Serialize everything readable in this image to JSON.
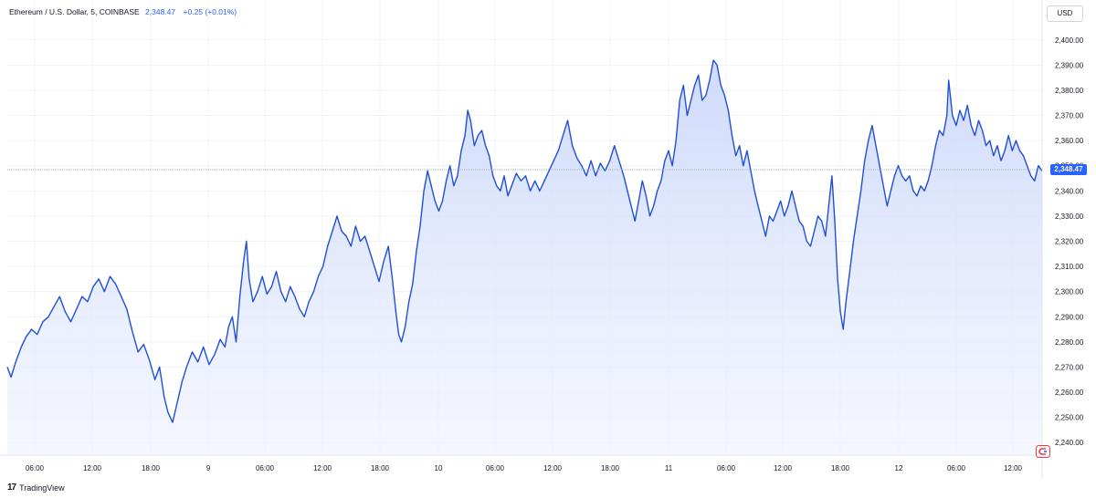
{
  "header": {
    "symbol": "Ethereum / U.S. Dollar, 5, COINBASE",
    "last": "2,348.47",
    "change": "+0.25 (+0.01%)"
  },
  "currency_button": "USD",
  "last_price_label": "2,348.47",
  "footer": {
    "logo_glyph": "17",
    "brand": "TradingView"
  },
  "colors": {
    "line": "#1f4fd6",
    "fill_top": "#c9d6fb",
    "fill_bottom": "#eef2fe",
    "grid": "#f2f3f6",
    "axis_text": "#131722",
    "price_tag": "#2962ff"
  },
  "chart_data": {
    "type": "area",
    "title": "Ethereum / U.S. Dollar, 5, COINBASE",
    "xlabel": "",
    "ylabel": "",
    "ylim": [
      2235,
      2405
    ],
    "y_ticks": [
      2240,
      2250,
      2260,
      2270,
      2280,
      2290,
      2300,
      2310,
      2320,
      2330,
      2340,
      2350,
      2360,
      2370,
      2380,
      2390,
      2400
    ],
    "y_tick_labels": [
      "2,240.00",
      "2,250.00",
      "2,260.00",
      "2,270.00",
      "2,280.00",
      "2,290.00",
      "2,300.00",
      "2,310.00",
      "2,320.00",
      "2,330.00",
      "2,340.00",
      "2,350.00",
      "2,360.00",
      "2,370.00",
      "2,380.00",
      "2,390.00",
      "2,400.00"
    ],
    "x_range_hours": [
      0,
      88
    ],
    "x_ticks": [
      {
        "h": 6,
        "label": "06:00"
      },
      {
        "h": 12,
        "label": "12:00"
      },
      {
        "h": 18,
        "label": "18:00"
      },
      {
        "h": 24,
        "label": "9"
      },
      {
        "h": 30,
        "label": "06:00"
      },
      {
        "h": 36,
        "label": "12:00"
      },
      {
        "h": 42,
        "label": "18:00"
      },
      {
        "h": 48,
        "label": "10"
      },
      {
        "h": 54,
        "label": "06:00"
      },
      {
        "h": 60,
        "label": "12:00"
      },
      {
        "h": 66,
        "label": "18:00"
      },
      {
        "h": 72,
        "label": "11"
      },
      {
        "h": 78,
        "label": "06:00"
      },
      {
        "h": 84,
        "label": "12:00"
      },
      {
        "h": 90,
        "label": "18:00"
      },
      {
        "h": 96,
        "label": "12"
      },
      {
        "h": 102,
        "label": "06:00"
      },
      {
        "h": 108,
        "label": "12:00"
      }
    ],
    "last_price": 2348.47,
    "series": [
      {
        "points": [
          [
            0,
            2270
          ],
          [
            0.4,
            2266
          ],
          [
            0.9,
            2272
          ],
          [
            1.5,
            2278
          ],
          [
            2,
            2282
          ],
          [
            2.6,
            2285
          ],
          [
            3.2,
            2283
          ],
          [
            3.8,
            2288
          ],
          [
            4.4,
            2290
          ],
          [
            5,
            2294
          ],
          [
            5.6,
            2298
          ],
          [
            6.2,
            2292
          ],
          [
            6.8,
            2288
          ],
          [
            7.4,
            2293
          ],
          [
            8,
            2298
          ],
          [
            8.6,
            2296
          ],
          [
            9.2,
            2302
          ],
          [
            9.8,
            2305
          ],
          [
            10.4,
            2300
          ],
          [
            11,
            2306
          ],
          [
            11.6,
            2303
          ],
          [
            12.2,
            2298
          ],
          [
            12.8,
            2293
          ],
          [
            13.4,
            2284
          ],
          [
            14,
            2276
          ],
          [
            14.6,
            2279
          ],
          [
            15.2,
            2273
          ],
          [
            15.8,
            2265
          ],
          [
            16.3,
            2270
          ],
          [
            16.8,
            2258
          ],
          [
            17.2,
            2252
          ],
          [
            17.7,
            2248
          ],
          [
            18.2,
            2256
          ],
          [
            18.7,
            2264
          ],
          [
            19.2,
            2270
          ],
          [
            19.8,
            2276
          ],
          [
            20.4,
            2272
          ],
          [
            21,
            2278
          ],
          [
            21.6,
            2271
          ],
          [
            22.2,
            2275
          ],
          [
            22.8,
            2281
          ],
          [
            23.3,
            2278
          ],
          [
            23.7,
            2286
          ],
          [
            24.1,
            2290
          ],
          [
            24.5,
            2280
          ],
          [
            24.9,
            2298
          ],
          [
            25.3,
            2312
          ],
          [
            25.6,
            2320
          ],
          [
            25.9,
            2305
          ],
          [
            26.3,
            2296
          ],
          [
            26.8,
            2300
          ],
          [
            27.3,
            2306
          ],
          [
            27.8,
            2299
          ],
          [
            28.3,
            2302
          ],
          [
            28.8,
            2308
          ],
          [
            29.3,
            2300
          ],
          [
            29.8,
            2296
          ],
          [
            30.3,
            2302
          ],
          [
            30.8,
            2298
          ],
          [
            31.3,
            2293
          ],
          [
            31.8,
            2290
          ],
          [
            32.3,
            2296
          ],
          [
            32.8,
            2300
          ],
          [
            33.3,
            2306
          ],
          [
            33.8,
            2310
          ],
          [
            34.3,
            2318
          ],
          [
            34.8,
            2324
          ],
          [
            35.3,
            2330
          ],
          [
            35.8,
            2324
          ],
          [
            36.3,
            2322
          ],
          [
            36.8,
            2318
          ],
          [
            37.3,
            2326
          ],
          [
            37.8,
            2320
          ],
          [
            38.3,
            2322
          ],
          [
            38.8,
            2316
          ],
          [
            39.3,
            2310
          ],
          [
            39.8,
            2304
          ],
          [
            40.3,
            2312
          ],
          [
            40.8,
            2318
          ],
          [
            41.2,
            2306
          ],
          [
            41.6,
            2292
          ],
          [
            41.9,
            2283
          ],
          [
            42.2,
            2280
          ],
          [
            42.6,
            2286
          ],
          [
            43,
            2296
          ],
          [
            43.4,
            2303
          ],
          [
            43.8,
            2316
          ],
          [
            44.2,
            2326
          ],
          [
            44.6,
            2340
          ],
          [
            45,
            2348
          ],
          [
            45.4,
            2342
          ],
          [
            45.8,
            2336
          ],
          [
            46.2,
            2332
          ],
          [
            46.6,
            2336
          ],
          [
            47,
            2344
          ],
          [
            47.4,
            2350
          ],
          [
            47.8,
            2342
          ],
          [
            48.2,
            2346
          ],
          [
            48.6,
            2356
          ],
          [
            49,
            2362
          ],
          [
            49.3,
            2372
          ],
          [
            49.6,
            2368
          ],
          [
            50,
            2358
          ],
          [
            50.4,
            2362
          ],
          [
            50.8,
            2364
          ],
          [
            51.2,
            2358
          ],
          [
            51.6,
            2354
          ],
          [
            52,
            2346
          ],
          [
            52.4,
            2342
          ],
          [
            52.8,
            2340
          ],
          [
            53.2,
            2346
          ],
          [
            53.6,
            2338
          ],
          [
            54,
            2342
          ],
          [
            54.5,
            2347
          ],
          [
            55,
            2344
          ],
          [
            55.5,
            2346
          ],
          [
            56,
            2340
          ],
          [
            56.5,
            2344
          ],
          [
            57,
            2340
          ],
          [
            57.5,
            2344
          ],
          [
            58,
            2348
          ],
          [
            58.5,
            2352
          ],
          [
            59,
            2356
          ],
          [
            59.5,
            2362
          ],
          [
            60,
            2368
          ],
          [
            60.5,
            2358
          ],
          [
            61,
            2353
          ],
          [
            61.5,
            2350
          ],
          [
            62,
            2346
          ],
          [
            62.5,
            2352
          ],
          [
            63,
            2346
          ],
          [
            63.5,
            2351
          ],
          [
            64,
            2348
          ],
          [
            64.5,
            2352
          ],
          [
            65,
            2358
          ],
          [
            65.5,
            2352
          ],
          [
            66,
            2346
          ],
          [
            66.4,
            2340
          ],
          [
            66.8,
            2334
          ],
          [
            67.2,
            2328
          ],
          [
            67.6,
            2336
          ],
          [
            68,
            2344
          ],
          [
            68.4,
            2338
          ],
          [
            68.8,
            2330
          ],
          [
            69.2,
            2334
          ],
          [
            69.6,
            2340
          ],
          [
            70,
            2344
          ],
          [
            70.4,
            2352
          ],
          [
            70.8,
            2356
          ],
          [
            71.2,
            2350
          ],
          [
            71.6,
            2360
          ],
          [
            72,
            2376
          ],
          [
            72.4,
            2382
          ],
          [
            72.8,
            2370
          ],
          [
            73.2,
            2376
          ],
          [
            73.6,
            2382
          ],
          [
            74,
            2386
          ],
          [
            74.4,
            2376
          ],
          [
            74.8,
            2378
          ],
          [
            75.2,
            2384
          ],
          [
            75.6,
            2392
          ],
          [
            76,
            2390
          ],
          [
            76.4,
            2382
          ],
          [
            76.8,
            2378
          ],
          [
            77.2,
            2372
          ],
          [
            77.6,
            2362
          ],
          [
            78,
            2354
          ],
          [
            78.4,
            2358
          ],
          [
            78.8,
            2350
          ],
          [
            79.2,
            2356
          ],
          [
            79.6,
            2348
          ],
          [
            80,
            2340
          ],
          [
            80.4,
            2334
          ],
          [
            80.8,
            2328
          ],
          [
            81.2,
            2322
          ],
          [
            81.6,
            2330
          ],
          [
            82,
            2328
          ],
          [
            82.4,
            2332
          ],
          [
            82.8,
            2336
          ],
          [
            83.2,
            2330
          ],
          [
            83.6,
            2334
          ],
          [
            84,
            2340
          ],
          [
            84.4,
            2334
          ],
          [
            84.8,
            2328
          ],
          [
            85.2,
            2326
          ],
          [
            85.6,
            2320
          ],
          [
            86,
            2318
          ],
          [
            86.4,
            2324
          ],
          [
            86.8,
            2330
          ],
          [
            87.2,
            2328
          ],
          [
            87.6,
            2322
          ],
          [
            88,
            2336
          ],
          [
            88.3,
            2346
          ],
          [
            88.6,
            2328
          ],
          [
            88.9,
            2305
          ],
          [
            89.2,
            2292
          ],
          [
            89.5,
            2285
          ],
          [
            89.8,
            2296
          ],
          [
            90.2,
            2308
          ],
          [
            90.6,
            2320
          ],
          [
            91,
            2330
          ],
          [
            91.4,
            2340
          ],
          [
            91.8,
            2352
          ],
          [
            92.2,
            2360
          ],
          [
            92.6,
            2366
          ],
          [
            93,
            2358
          ],
          [
            93.4,
            2350
          ],
          [
            93.8,
            2342
          ],
          [
            94.2,
            2334
          ],
          [
            94.6,
            2340
          ],
          [
            95,
            2346
          ],
          [
            95.4,
            2350
          ],
          [
            95.8,
            2346
          ],
          [
            96.2,
            2344
          ],
          [
            96.6,
            2346
          ],
          [
            97,
            2340
          ],
          [
            97.4,
            2338
          ],
          [
            97.8,
            2342
          ],
          [
            98.2,
            2340
          ],
          [
            98.6,
            2344
          ],
          [
            99,
            2350
          ],
          [
            99.4,
            2358
          ],
          [
            99.8,
            2364
          ],
          [
            100.2,
            2362
          ],
          [
            100.6,
            2370
          ],
          [
            100.8,
            2384
          ],
          [
            101.2,
            2370
          ],
          [
            101.6,
            2366
          ],
          [
            102,
            2372
          ],
          [
            102.4,
            2368
          ],
          [
            102.8,
            2374
          ],
          [
            103.2,
            2366
          ],
          [
            103.6,
            2362
          ],
          [
            104,
            2368
          ],
          [
            104.4,
            2364
          ],
          [
            104.8,
            2358
          ],
          [
            105.2,
            2360
          ],
          [
            105.6,
            2354
          ],
          [
            106,
            2358
          ],
          [
            106.4,
            2352
          ],
          [
            106.8,
            2356
          ],
          [
            107.2,
            2362
          ],
          [
            107.6,
            2356
          ],
          [
            108,
            2360
          ],
          [
            108.4,
            2356
          ],
          [
            108.8,
            2354
          ],
          [
            109.2,
            2350
          ],
          [
            109.6,
            2346
          ],
          [
            110,
            2344
          ],
          [
            110.4,
            2350
          ],
          [
            110.8,
            2348
          ]
        ]
      }
    ]
  }
}
